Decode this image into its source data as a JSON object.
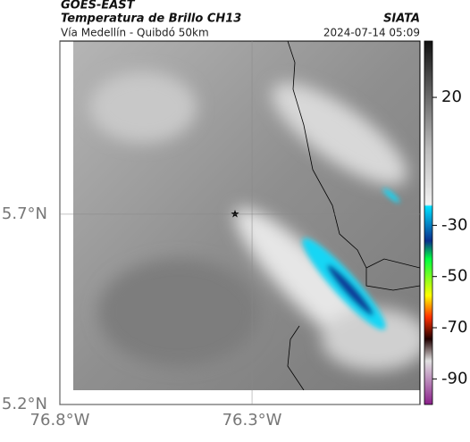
{
  "header": {
    "source": "GOES-EAST",
    "title": "Temperatura de Brillo CH13",
    "region": "Vía Medellín - Quibdó 50km",
    "agency": "SIATA",
    "datetime": "2024-07-14 05:09"
  },
  "map": {
    "xlim": [
      -76.8,
      -75.863
    ],
    "ylim": [
      5.2,
      6.155
    ],
    "xticks": [
      {
        "value": -76.8,
        "label": "76.8°W"
      },
      {
        "value": -76.3,
        "label": "76.3°W"
      }
    ],
    "yticks": [
      {
        "value": 5.7,
        "label": "5.7°N"
      },
      {
        "value": 5.2,
        "label": "5.2°N"
      }
    ],
    "grid": true
  },
  "colorbar": {
    "lim": [
      -100,
      42
    ],
    "ticks": [
      20,
      -30,
      -50,
      -70,
      -90
    ]
  }
}
